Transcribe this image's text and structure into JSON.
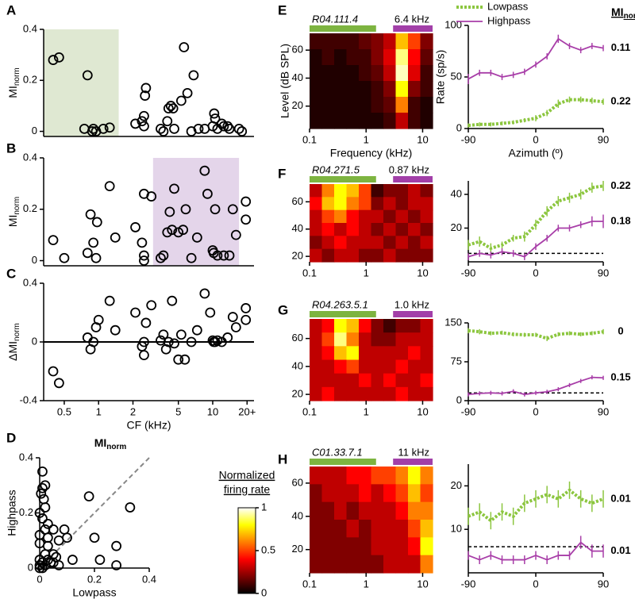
{
  "chart_data": [
    {
      "type": "scatter",
      "panel": "A",
      "ylabel": "MI",
      "ylabel_sub": "norm",
      "xscale": "log",
      "xlim": [
        0.33,
        23
      ],
      "ylim": [
        -0.02,
        0.4
      ],
      "yticks": [
        0,
        0.2,
        0.4
      ],
      "shade": {
        "color": "#dfe8d2",
        "from": 0.33,
        "to": 1.5
      },
      "x": [
        0.4,
        0.45,
        0.8,
        0.75,
        0.88,
        0.95,
        0.9,
        1.1,
        1.25,
        2.1,
        2.4,
        2.5,
        2.5,
        2.55,
        2.6,
        3.5,
        3.7,
        4.0,
        4.1,
        4.3,
        4.5,
        4.6,
        5.3,
        5.6,
        6.0,
        6.5,
        6.8,
        7.5,
        8.5,
        10,
        10.3,
        10.5,
        11,
        12,
        12.5,
        13.5,
        14,
        17,
        18
      ],
      "y": [
        0.28,
        0.29,
        0.22,
        0.01,
        0,
        0,
        0.01,
        0.01,
        0.015,
        0.03,
        0.04,
        0.06,
        0.02,
        0.14,
        0.17,
        0.01,
        0,
        0.04,
        0.09,
        0.1,
        0.09,
        0.01,
        0.12,
        0.33,
        0.15,
        0,
        0.22,
        0.01,
        0.01,
        0.02,
        0.07,
        0.05,
        0.01,
        0.03,
        0.02,
        0.02,
        0.01,
        0.01,
        0
      ]
    },
    {
      "type": "scatter",
      "panel": "B",
      "ylabel": "MI",
      "ylabel_sub": "norm",
      "xscale": "log",
      "xlim": [
        0.33,
        23
      ],
      "ylim": [
        -0.02,
        0.4
      ],
      "yticks": [
        0,
        0.2,
        0.4
      ],
      "shade": {
        "color": "#e4d5ea",
        "from": 3,
        "to": 17
      },
      "x": [
        0.4,
        0.5,
        0.8,
        0.85,
        0.9,
        0.95,
        0.97,
        1.25,
        1.4,
        2.1,
        2.4,
        2.5,
        2.5,
        2.5,
        2.9,
        3.5,
        3.7,
        4.0,
        4.2,
        4.4,
        4.6,
        5,
        5.5,
        5.8,
        6.5,
        7.3,
        8.5,
        9.0,
        10,
        10.2,
        10.5,
        11,
        12.5,
        14,
        15,
        16,
        19.5,
        19.5
      ],
      "y": [
        0.08,
        0.01,
        0.03,
        0.18,
        0.07,
        0.01,
        0.15,
        0.29,
        0.09,
        0.13,
        0.07,
        0,
        0.26,
        0.02,
        0.25,
        0.01,
        0.02,
        0.11,
        0.19,
        0.12,
        0.28,
        0.11,
        0.12,
        0.2,
        0.01,
        0.09,
        0.35,
        0.26,
        0.04,
        0.03,
        0.2,
        0.02,
        0.02,
        0.02,
        0.2,
        0.1,
        0.23,
        0.16
      ]
    },
    {
      "type": "scatter",
      "panel": "C",
      "ylabel": "ΔMI",
      "ylabel_sub": "norm",
      "xlabel": "CF (kHz)",
      "xscale": "log",
      "xlim": [
        0.33,
        23
      ],
      "ylim": [
        -0.4,
        0.4
      ],
      "yticks": [
        -0.4,
        0,
        0.4
      ],
      "xticks": [
        0.5,
        1,
        2,
        5,
        10,
        {
          "value": 20,
          "label": "20+"
        }
      ],
      "hline": 0,
      "x": [
        0.4,
        0.45,
        0.8,
        0.85,
        0.9,
        0.95,
        1.0,
        1.25,
        1.4,
        2.1,
        2.4,
        2.5,
        2.5,
        2.6,
        2.9,
        3.5,
        3.7,
        3.9,
        4.1,
        4.4,
        4.6,
        5,
        5.3,
        5.7,
        6.5,
        7.3,
        8.5,
        9.5,
        10,
        10.2,
        10.5,
        11,
        12,
        13.5,
        15,
        16,
        19.5,
        19.5
      ],
      "y": [
        -0.2,
        -0.28,
        0.03,
        -0.05,
        0,
        0.1,
        0.15,
        0.28,
        0.08,
        0.2,
        -0.03,
        0,
        -0.09,
        0.13,
        0.25,
        0.01,
        0.05,
        -0.05,
        0,
        0.28,
        -0.01,
        -0.12,
        0.05,
        -0.12,
        0,
        0.08,
        0.33,
        0.2,
        0.01,
        0,
        0,
        0.01,
        0,
        0.03,
        0.17,
        0.1,
        0.23,
        0.15
      ]
    },
    {
      "type": "scatter",
      "panel": "D",
      "title": "MI",
      "title_sub": "norm",
      "xlabel": "Lowpass",
      "ylabel": "Highpass",
      "xlim": [
        0,
        0.4
      ],
      "ylim": [
        0,
        0.4
      ],
      "xticks": [
        0,
        0.2,
        0.4
      ],
      "yticks": [
        0,
        0.2,
        0.4
      ],
      "diagonal": true,
      "x": [
        0.01,
        0.02,
        0.01,
        0.005,
        0.015,
        0.02,
        0,
        0.01,
        0.03,
        0.02,
        0.05,
        0.09,
        0,
        0.03,
        0.07,
        0.1,
        0.2,
        0,
        0.03,
        0.05,
        0.02,
        0.06,
        0,
        0.01,
        0.03,
        0.04,
        0.01,
        0,
        0.02,
        0.05,
        0.12,
        0.22,
        0.18,
        0.33,
        0.28,
        0.28,
        0.07,
        0
      ],
      "y": [
        0.35,
        0.3,
        0.29,
        0.27,
        0.25,
        0.22,
        0.2,
        0.18,
        0.16,
        0.14,
        0.14,
        0.14,
        0.12,
        0.11,
        0.1,
        0.11,
        0.11,
        0.09,
        0.08,
        0.05,
        0.05,
        0.04,
        0.03,
        0.02,
        0.03,
        0.02,
        0,
        0.01,
        0.01,
        0.02,
        0.03,
        0.03,
        0.26,
        0.22,
        0.08,
        0.01,
        0.01,
        0
      ]
    },
    {
      "type": "colorbar",
      "title": [
        "Normalized",
        "firing rate"
      ],
      "colormap": "hot",
      "lim": [
        0,
        1
      ],
      "ticks": [
        0,
        0.5,
        1
      ]
    },
    {
      "type": "heatmap",
      "panel": "E",
      "name": "R04.111.4",
      "best_freq": "6.4 kHz",
      "colormap": "hot",
      "xlabel": "Frequency (kHz)",
      "ylabel": "Level (dB SPL)",
      "xscale": "log",
      "xlim": [
        0.1,
        15
      ],
      "ylim": [
        4,
        72
      ],
      "xticks": [
        0.1,
        1,
        10
      ],
      "yticks": [
        20,
        40,
        60
      ],
      "bands": [
        {
          "color": "#7db440",
          "from": 0.1,
          "to": 1.5
        },
        {
          "color": "#a23fa8",
          "from": 3,
          "to": 15
        }
      ],
      "z": [
        [
          0.1,
          0.1,
          0.1,
          0.1,
          0.15,
          0.2,
          0.3,
          0.7,
          0.5,
          0.2
        ],
        [
          0.05,
          0.1,
          0.05,
          0.1,
          0.1,
          0.2,
          0.35,
          0.9,
          0.4,
          0.15
        ],
        [
          0.05,
          0.05,
          0.05,
          0.05,
          0.1,
          0.15,
          0.3,
          0.95,
          0.35,
          0.1
        ],
        [
          0.05,
          0.05,
          0.05,
          0.05,
          0.05,
          0.1,
          0.2,
          0.8,
          0.2,
          0.1
        ],
        [
          0.05,
          0.05,
          0.05,
          0.05,
          0.05,
          0.1,
          0.15,
          0.6,
          0.1,
          0.05
        ],
        [
          0.05,
          0.05,
          0.05,
          0.05,
          0.05,
          0.05,
          0.1,
          0.3,
          0.1,
          0.05
        ]
      ]
    },
    {
      "type": "line",
      "xlabel": "Azimuth (º)",
      "ylabel": "Rate (sp/s)",
      "legend": "top",
      "mi_header": "MI",
      "mi_header_sub": "norm",
      "x": [
        -90,
        -75,
        -60,
        -45,
        -30,
        -15,
        0,
        15,
        30,
        45,
        60,
        75,
        90
      ],
      "xlim": [
        -90,
        90
      ],
      "xticks": [
        -90,
        0,
        90
      ],
      "ylim": [
        0,
        100
      ],
      "yticks": [
        0,
        50,
        100
      ],
      "series": [
        {
          "name": "Lowpass",
          "color": "#8cc63f",
          "style": "dashed",
          "mi": 0.22,
          "values": [
            3,
            4,
            4,
            5,
            6,
            8,
            10,
            15,
            24,
            28,
            28,
            27,
            26
          ],
          "errors": [
            2,
            2,
            2,
            2,
            2,
            2,
            3,
            3,
            4,
            3,
            3,
            3,
            3
          ]
        },
        {
          "name": "Highpass",
          "color": "#a83ea8",
          "style": "solid",
          "mi": 0.11,
          "values": [
            48,
            54,
            54,
            50,
            52,
            55,
            62,
            70,
            87,
            80,
            76,
            80,
            78
          ],
          "errors": [
            5,
            3,
            3,
            3,
            3,
            3,
            3,
            3,
            4,
            3,
            3,
            3,
            3
          ]
        }
      ]
    },
    {
      "type": "heatmap",
      "panel": "F",
      "name": "R04.271.5",
      "best_freq": "0.87 kHz",
      "colormap": "hot",
      "xscale": "log",
      "xlim": [
        0.1,
        15
      ],
      "ylim": [
        16,
        73
      ],
      "xticks": [
        0.1,
        1,
        10
      ],
      "yticks": [
        20,
        40,
        60
      ],
      "bands": [
        {
          "color": "#7db440",
          "from": 0.1,
          "to": 1.5
        },
        {
          "color": "#a23fa8",
          "from": 3,
          "to": 15
        }
      ],
      "z": [
        [
          0.3,
          0.6,
          0.8,
          0.7,
          0.5,
          0.1,
          0.2,
          0.2,
          0.3,
          0.2
        ],
        [
          0.4,
          0.7,
          0.8,
          0.6,
          0.5,
          0.2,
          0.3,
          0.2,
          0.3,
          0.3
        ],
        [
          0.3,
          0.5,
          0.6,
          0.4,
          0.3,
          0.3,
          0.2,
          0.3,
          0.2,
          0.3
        ],
        [
          0.3,
          0.4,
          0.3,
          0.4,
          0.3,
          0.2,
          0.3,
          0.2,
          0.3,
          0.2
        ],
        [
          0.2,
          0.3,
          0.4,
          0.3,
          0.3,
          0.3,
          0.2,
          0.3,
          0.2,
          0.3
        ],
        [
          0.3,
          0.2,
          0.3,
          0.3,
          0.2,
          0.2,
          0.3,
          0.2,
          0.2,
          0.2
        ]
      ]
    },
    {
      "type": "line",
      "x": [
        -90,
        -75,
        -60,
        -45,
        -30,
        -15,
        0,
        15,
        30,
        45,
        60,
        75,
        90
      ],
      "xlim": [
        -90,
        90
      ],
      "xticks": [
        -90,
        0,
        90
      ],
      "ylim": [
        0,
        48
      ],
      "yticks": [
        20,
        40
      ],
      "ref_line": 5,
      "series": [
        {
          "name": "Lowpass",
          "color": "#8cc63f",
          "style": "dashed",
          "mi": 0.22,
          "values": [
            10,
            12,
            8,
            10,
            14,
            15,
            22,
            30,
            36,
            38,
            40,
            44,
            45
          ],
          "errors": [
            3,
            3,
            3,
            2,
            2,
            3,
            3,
            3,
            3,
            3,
            3,
            3,
            3
          ]
        },
        {
          "name": "Highpass",
          "color": "#a83ea8",
          "style": "solid",
          "mi": 0.18,
          "values": [
            3,
            5,
            4,
            6,
            5,
            3,
            9,
            14,
            20,
            20,
            22,
            24,
            24
          ],
          "errors": [
            2,
            2,
            2,
            2,
            2,
            2,
            2,
            2,
            2,
            2,
            2,
            3,
            4
          ]
        }
      ]
    },
    {
      "type": "heatmap",
      "panel": "G",
      "name": "R04.263.5.1",
      "best_freq": "1.0 kHz",
      "colormap": "hot",
      "xscale": "log",
      "xlim": [
        0.1,
        15
      ],
      "ylim": [
        15.5,
        74
      ],
      "xticks": [
        0.1,
        1,
        10
      ],
      "yticks": [
        20,
        40,
        60
      ],
      "bands": [
        {
          "color": "#7db440",
          "from": 0.1,
          "to": 1.5
        },
        {
          "color": "#a23fa8",
          "from": 3,
          "to": 15
        }
      ],
      "z": [
        [
          0.3,
          0.4,
          0.8,
          0.7,
          0.4,
          0.2,
          0.1,
          0.2,
          0.2,
          0.3
        ],
        [
          0.3,
          0.5,
          0.9,
          0.6,
          0.3,
          0.2,
          0.2,
          0.3,
          0.3,
          0.3
        ],
        [
          0.3,
          0.4,
          0.7,
          0.8,
          0.3,
          0.3,
          0.3,
          0.3,
          0.4,
          0.3
        ],
        [
          0.3,
          0.3,
          0.4,
          0.5,
          0.3,
          0.3,
          0.3,
          0.4,
          0.3,
          0.3
        ],
        [
          0.3,
          0.3,
          0.3,
          0.3,
          0.4,
          0.3,
          0.4,
          0.3,
          0.3,
          0.4
        ],
        [
          0.3,
          0.4,
          0.3,
          0.3,
          0.3,
          0.3,
          0.3,
          0.4,
          0.3,
          0.3
        ]
      ]
    },
    {
      "type": "line",
      "x": [
        -90,
        -75,
        -60,
        -45,
        -30,
        -15,
        0,
        15,
        30,
        45,
        60,
        75,
        90
      ],
      "xlim": [
        -90,
        90
      ],
      "xticks": [
        -90,
        0,
        90
      ],
      "ylim": [
        0,
        150
      ],
      "yticks": [
        0,
        75,
        150
      ],
      "ref_line": 15,
      "series": [
        {
          "name": "Lowpass",
          "color": "#8cc63f",
          "style": "dashed",
          "mi": 0,
          "values": [
            135,
            133,
            130,
            131,
            128,
            127,
            127,
            120,
            128,
            130,
            128,
            130,
            133
          ],
          "errors": [
            5,
            5,
            4,
            4,
            4,
            4,
            4,
            5,
            4,
            4,
            4,
            4,
            5
          ]
        },
        {
          "name": "Highpass",
          "color": "#a83ea8",
          "style": "solid",
          "mi": 0.15,
          "values": [
            12,
            14,
            15,
            14,
            18,
            12,
            15,
            17,
            22,
            30,
            38,
            45,
            44
          ],
          "errors": [
            4,
            4,
            4,
            4,
            4,
            4,
            4,
            4,
            4,
            4,
            4,
            4,
            4
          ]
        }
      ]
    },
    {
      "type": "heatmap",
      "panel": "H",
      "name": "C01.33.7.1",
      "best_freq": "11 kHz",
      "colormap": "hot",
      "xscale": "log",
      "xlim": [
        0.1,
        15
      ],
      "ylim": [
        6,
        70
      ],
      "xticks": [
        0.1,
        1,
        10
      ],
      "yticks": [
        20,
        40,
        60
      ],
      "bands": [
        {
          "color": "#7db440",
          "from": 0.1,
          "to": 1.5
        },
        {
          "color": "#a23fa8",
          "from": 3,
          "to": 15
        }
      ],
      "z": [
        [
          0.3,
          0.3,
          0.3,
          0.4,
          0.4,
          0.5,
          0.5,
          0.6,
          0.8,
          0.6
        ],
        [
          0.2,
          0.3,
          0.3,
          0.3,
          0.4,
          0.3,
          0.4,
          0.5,
          0.7,
          0.5
        ],
        [
          0.2,
          0.2,
          0.3,
          0.2,
          0.3,
          0.3,
          0.3,
          0.4,
          0.6,
          0.6
        ],
        [
          0.2,
          0.2,
          0.2,
          0.3,
          0.2,
          0.3,
          0.3,
          0.3,
          0.5,
          0.7
        ],
        [
          0.2,
          0.2,
          0.2,
          0.2,
          0.2,
          0.3,
          0.3,
          0.3,
          0.4,
          0.8
        ],
        [
          0.2,
          0.2,
          0.2,
          0.2,
          0.2,
          0.2,
          0.3,
          0.3,
          0.3,
          0.6
        ]
      ]
    },
    {
      "type": "line",
      "x": [
        -90,
        -75,
        -60,
        -45,
        -30,
        -15,
        0,
        15,
        30,
        45,
        60,
        75,
        90
      ],
      "xlim": [
        -90,
        90
      ],
      "xticks": [
        -90,
        0,
        90
      ],
      "ylim": [
        0,
        25
      ],
      "yticks": [
        10,
        20
      ],
      "ref_line": 6,
      "series": [
        {
          "name": "Lowpass",
          "color": "#8cc63f",
          "style": "dashed",
          "mi": 0.01,
          "values": [
            13,
            14,
            12,
            14,
            13,
            16,
            17,
            18,
            17,
            19,
            17,
            16,
            17
          ],
          "errors": [
            2,
            2,
            2,
            2,
            2,
            2,
            2,
            2,
            2,
            2,
            2,
            2,
            2
          ]
        },
        {
          "name": "Highpass",
          "color": "#a83ea8",
          "style": "solid",
          "mi": 0.01,
          "values": [
            4,
            3,
            4,
            3,
            3,
            3,
            4,
            3,
            4,
            4,
            7,
            5,
            5
          ],
          "errors": [
            1,
            1,
            1,
            1,
            1,
            1,
            1,
            1,
            1,
            1,
            1.5,
            1.5,
            1.5
          ]
        }
      ]
    }
  ]
}
